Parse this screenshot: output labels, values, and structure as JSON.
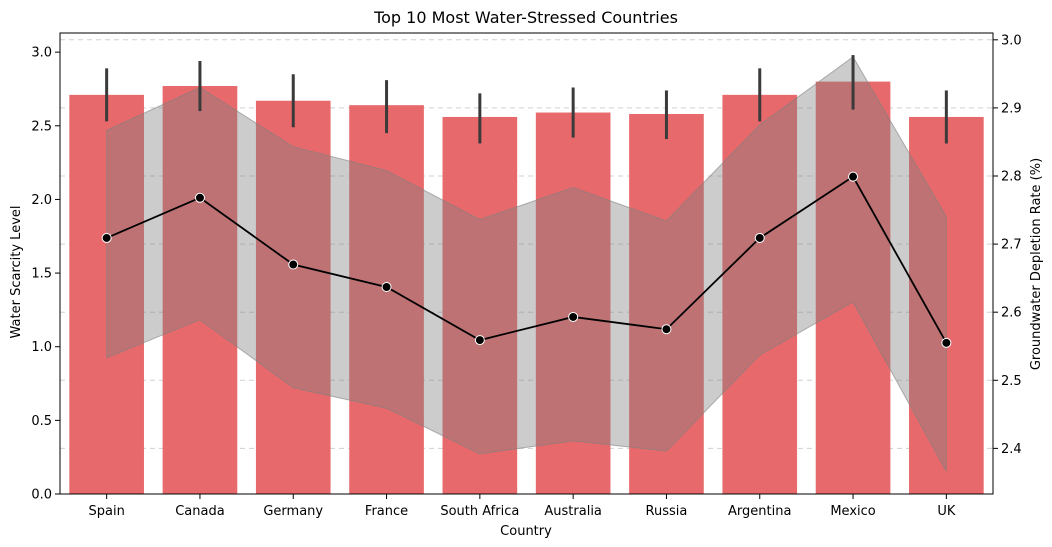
{
  "chart_data": {
    "type": "bar",
    "title": "Top 10 Most Water-Stressed Countries",
    "xlabel": "Country",
    "ylabel": "Water Scarcity Level",
    "y2label": "Groundwater Depletion Rate (%)",
    "categories": [
      "Spain",
      "Canada",
      "Germany",
      "France",
      "South Africa",
      "Australia",
      "Russia",
      "Argentina",
      "Mexico",
      "UK"
    ],
    "ylim": [
      0,
      3.13
    ],
    "y2lim": [
      2.333,
      3.01
    ],
    "yticks": [
      "0.0",
      "0.5",
      "1.0",
      "1.5",
      "2.0",
      "2.5",
      "3.0"
    ],
    "y2ticks": [
      "2.4",
      "2.5",
      "2.6",
      "2.7",
      "2.8",
      "2.9",
      "3.0"
    ],
    "grid": "y (right axis), dashed",
    "colors": {
      "bar": "#e8696b",
      "line": "#000000",
      "band": "#808080",
      "errorbar": "#3a3a3a",
      "grid": "#d0d0d0"
    },
    "series": [
      {
        "name": "Water Scarcity Level",
        "type": "bar",
        "axis": "left",
        "values": [
          2.71,
          2.77,
          2.67,
          2.64,
          2.56,
          2.59,
          2.58,
          2.71,
          2.8,
          2.56
        ],
        "error_low": [
          2.53,
          2.6,
          2.49,
          2.45,
          2.38,
          2.42,
          2.41,
          2.53,
          2.61,
          2.38
        ],
        "error_high": [
          2.89,
          2.94,
          2.85,
          2.81,
          2.72,
          2.76,
          2.74,
          2.89,
          2.98,
          2.74
        ]
      },
      {
        "name": "Groundwater Depletion Rate (%)",
        "type": "line",
        "axis": "right",
        "values": [
          2.709,
          2.768,
          2.67,
          2.637,
          2.559,
          2.593,
          2.575,
          2.709,
          2.799,
          2.555
        ],
        "band_low": [
          2.533,
          2.589,
          2.489,
          2.459,
          2.392,
          2.411,
          2.396,
          2.537,
          2.615,
          2.366
        ],
        "band_high": [
          2.867,
          2.93,
          2.843,
          2.808,
          2.736,
          2.783,
          2.734,
          2.875,
          2.975,
          2.74
        ]
      }
    ]
  }
}
